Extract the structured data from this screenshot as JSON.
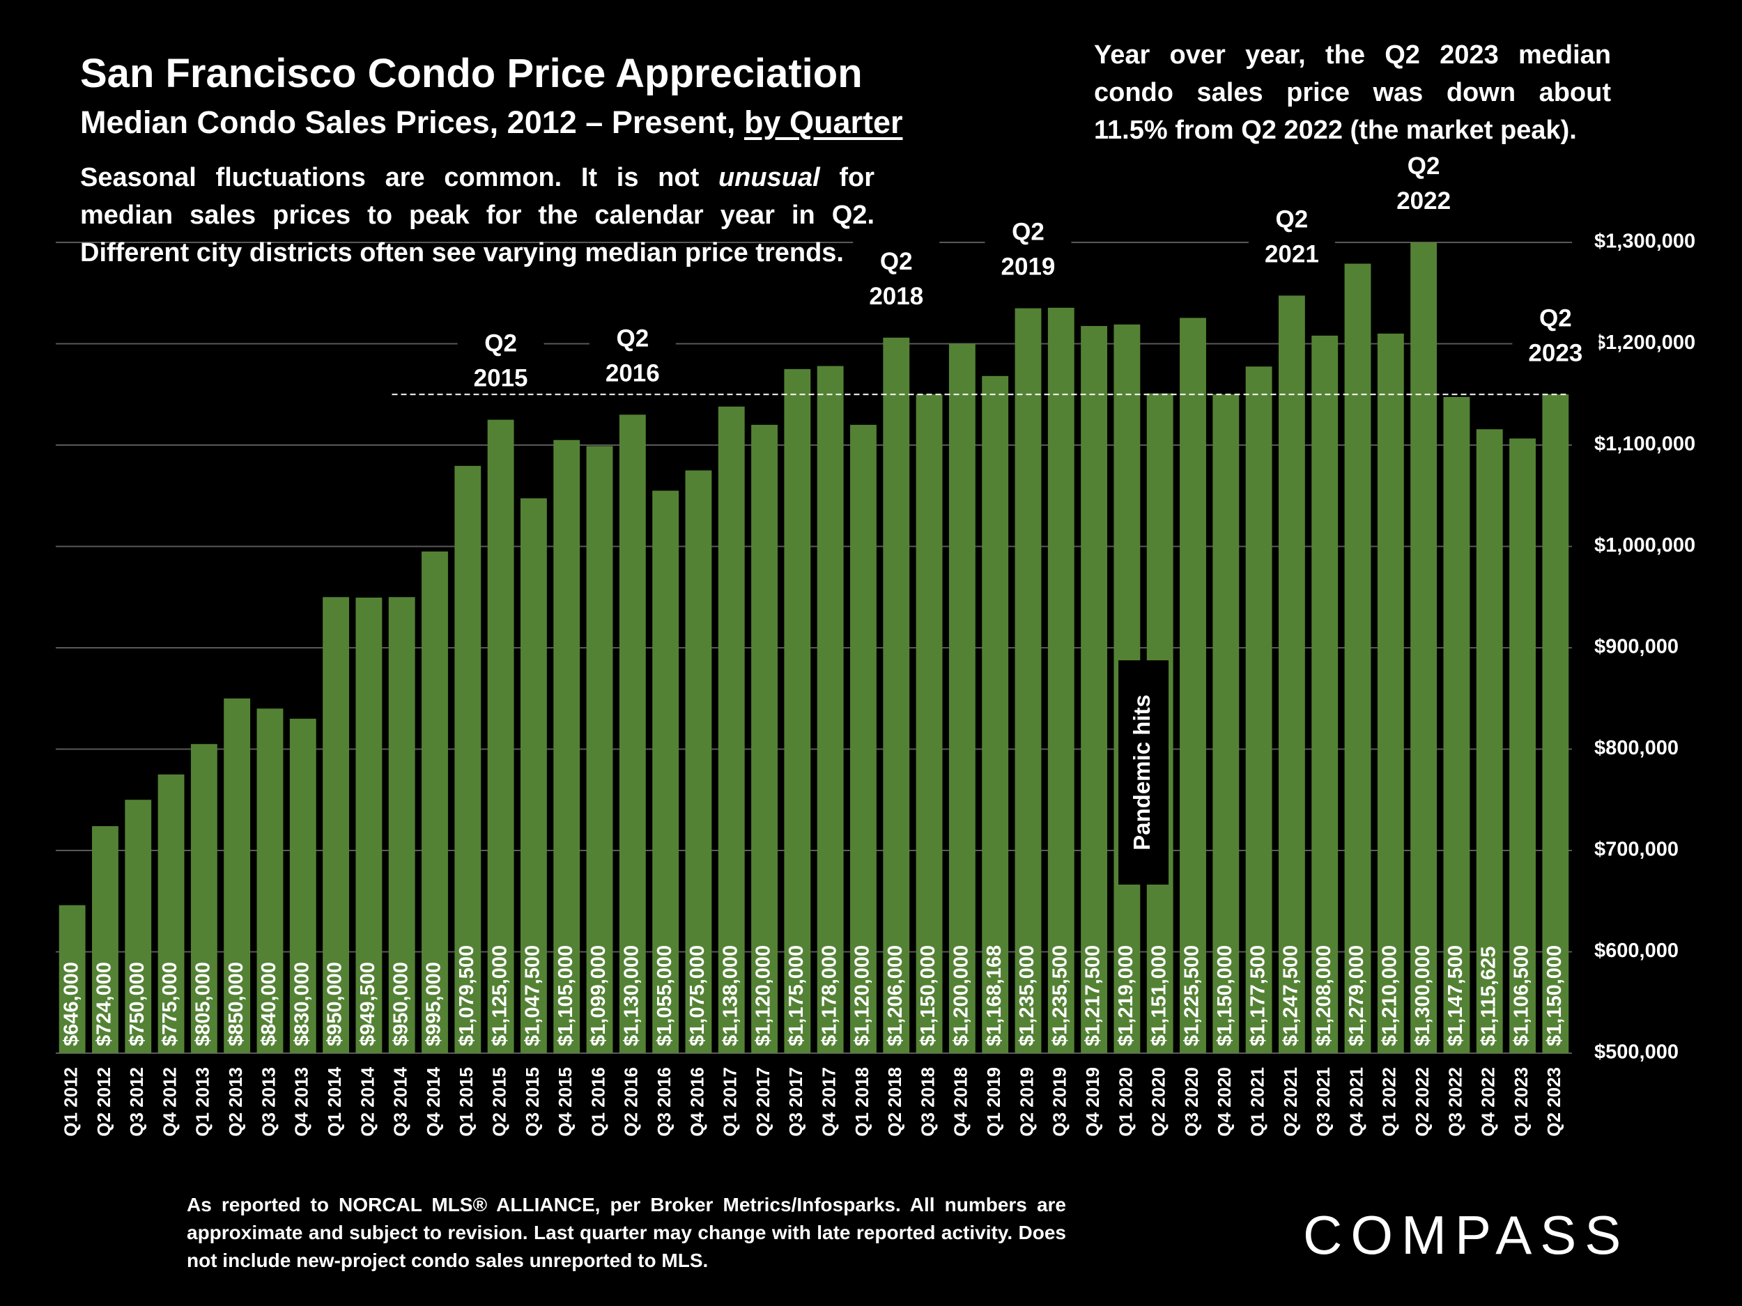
{
  "chart_data": {
    "type": "bar",
    "title": "San Francisco Condo Price Appreciation",
    "subtitle": "Median Condo Sales Prices, 2012 – Present,",
    "subtitle_emphasis": "by Quarter",
    "note": [
      "Seasonal fluctuations are common. It is not",
      "unusual",
      "for median sales prices to peak for the calendar year in Q2. Different city districts often see varying median price trends."
    ],
    "top_note": "Year over year, the Q2 2023 median condo sales price was down about 11.5% from Q2 2022 (the market peak).",
    "footer": "As reported to NORCAL MLS® ALLIANCE, per Broker Metrics/Infosparks. All numbers are approximate and subject to revision. Last quarter may change with late reported activity. Does not include new-project condo sales unreported to MLS.",
    "logo": "COMPASS",
    "event_label": "Pandemic hits",
    "color": "#548235",
    "grid": true,
    "reference_line": 1150000,
    "categories": [
      "Q1 2012",
      "Q2 2012",
      "Q3 2012",
      "Q4 2012",
      "Q1 2013",
      "Q2 2013",
      "Q3 2013",
      "Q4 2013",
      "Q1 2014",
      "Q2 2014",
      "Q3 2014",
      "Q4 2014",
      "Q1 2015",
      "Q2 2015",
      "Q3 2015",
      "Q4 2015",
      "Q1 2016",
      "Q2 2016",
      "Q3 2016",
      "Q4 2016",
      "Q1 2017",
      "Q2 2017",
      "Q3 2017",
      "Q4 2017",
      "Q1 2018",
      "Q2 2018",
      "Q3 2018",
      "Q4 2018",
      "Q1 2019",
      "Q2 2019",
      "Q3 2019",
      "Q4 2019",
      "Q1 2020",
      "Q2 2020",
      "Q3 2020",
      "Q4 2020",
      "Q1 2021",
      "Q2 2021",
      "Q3 2021",
      "Q4 2021",
      "Q1 2022",
      "Q2 2022",
      "Q3 2022",
      "Q4 2022",
      "Q1 2023",
      "Q2 2023"
    ],
    "values": [
      646000,
      724000,
      750000,
      775000,
      805000,
      850000,
      840000,
      830000,
      950000,
      949500,
      950000,
      995000,
      1079500,
      1125000,
      1047500,
      1105000,
      1099000,
      1130000,
      1055000,
      1075000,
      1138000,
      1120000,
      1175000,
      1178000,
      1120000,
      1206000,
      1150000,
      1200000,
      1168168,
      1235000,
      1235500,
      1217500,
      1219000,
      1151000,
      1225500,
      1150000,
      1177500,
      1247500,
      1208000,
      1279000,
      1210000,
      1300000,
      1147500,
      1115625,
      1106500,
      1150000
    ],
    "value_labels": [
      "$646,000",
      "$724,000",
      "$750,000",
      "$775,000",
      "$805,000",
      "$850,000",
      "$840,000",
      "$830,000",
      "$950,000",
      "$949,500",
      "$950,000",
      "$995,000",
      "$1,079,500",
      "$1,125,000",
      "$1,047,500",
      "$1,105,000",
      "$1,099,000",
      "$1,130,000",
      "$1,055,000",
      "$1,075,000",
      "$1,138,000",
      "$1,120,000",
      "$1,175,000",
      "$1,178,000",
      "$1,120,000",
      "$1,206,000",
      "$1,150,000",
      "$1,200,000",
      "$1,168,168",
      "$1,235,000",
      "$1,235,500",
      "$1,217,500",
      "$1,219,000",
      "$1,151,000",
      "$1,225,500",
      "$1,150,000",
      "$1,177,500",
      "$1,247,500",
      "$1,208,000",
      "$1,279,000",
      "$1,210,000",
      "$1,300,000",
      "$1,147,500",
      "$1,115,625",
      "$1,106,500",
      "$1,150,000"
    ],
    "annotations": [
      [
        "Q2",
        "2015"
      ],
      [
        "Q2",
        "2016"
      ],
      [
        "Q2",
        "2018"
      ],
      [
        "Q2",
        "2019"
      ],
      [
        "Q2",
        "2021"
      ],
      [
        "Q2",
        "2022"
      ],
      [
        "Q2",
        "2023"
      ]
    ],
    "ylim": [
      500000,
      1300000
    ],
    "yticks": [
      {
        "value": 500000,
        "label": "$500,000"
      },
      {
        "value": 600000,
        "label": "$600,000"
      },
      {
        "value": 700000,
        "label": "$700,000"
      },
      {
        "value": 800000,
        "label": "$800,000"
      },
      {
        "value": 900000,
        "label": "$900,000"
      },
      {
        "value": 1000000,
        "label": "$1,000,000"
      },
      {
        "value": 1100000,
        "label": "$1,100,000"
      },
      {
        "value": 1200000,
        "label": "$1,200,000"
      },
      {
        "value": 1300000,
        "label": "$1,300,000"
      }
    ]
  }
}
